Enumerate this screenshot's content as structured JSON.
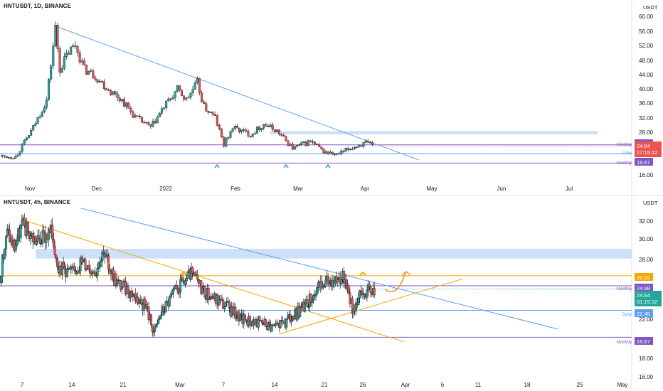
{
  "charts": [
    {
      "id": "daily",
      "title": "HNTUSDT, 1D, BINANCE",
      "currency": "USDT",
      "y_ticks": [
        "60.00",
        "56.00",
        "52.00",
        "48.00",
        "44.00",
        "40.00",
        "36.00",
        "32.00",
        "28.00",
        "16.00"
      ],
      "x_ticks": [
        "Nov",
        "Dec",
        "2022",
        "Feb",
        "Mar",
        "Apr",
        "May",
        "Jun",
        "Jul"
      ],
      "levels": [
        {
          "name": "Monthly",
          "value": "24.98",
          "color": "#7e57c2"
        },
        {
          "name": "Daily",
          "value": "22.45",
          "color": "#5b9cf6"
        },
        {
          "name": "Monthly",
          "value": "19.67",
          "color": "#7e57c2"
        }
      ],
      "price_badge": {
        "value": "24.64",
        "countdown": "17:15:12",
        "color": "#ef5350"
      },
      "support_markers": 3
    },
    {
      "id": "h4",
      "title": "HNTUSDT, 4h, BINANCE",
      "currency": "USDT",
      "y_ticks": [
        "32.00",
        "30.00",
        "28.00",
        "22.00",
        "18.00",
        "16.00"
      ],
      "x_ticks": [
        "7",
        "14",
        "21",
        "Mar",
        "7",
        "14",
        "21",
        "26",
        "Apr",
        "6",
        "11",
        "18",
        "25",
        "May"
      ],
      "levels": [
        {
          "name": "",
          "value": "26.02",
          "color": "#f7a600"
        },
        {
          "name": "Monthly",
          "value": "24.98",
          "color": "#7e57c2"
        },
        {
          "name": "Daily",
          "value": "22.45",
          "color": "#5b9cf6"
        },
        {
          "name": "Monthly",
          "value": "19.67",
          "color": "#7e57c2"
        }
      ],
      "price_badge": {
        "value": "24.64",
        "countdown": "01:15:12",
        "color": "#26a69a"
      }
    }
  ],
  "chart_data": [
    {
      "type": "candlestick",
      "title": "HNTUSDT, 1D, BINANCE",
      "x_range": [
        "2021-10-13",
        "2022-07-25"
      ],
      "ylim": [
        15,
        64
      ],
      "close_path": [
        [
          "2021-10-14",
          21.6
        ],
        [
          "2021-10-20",
          21.5
        ],
        [
          "2021-10-28",
          30
        ],
        [
          "2021-11-03",
          38
        ],
        [
          "2021-11-07",
          59
        ],
        [
          "2021-11-09",
          47
        ],
        [
          "2021-11-13",
          52
        ],
        [
          "2021-11-16",
          54
        ],
        [
          "2021-11-20",
          47
        ],
        [
          "2021-11-25",
          45
        ],
        [
          "2021-12-01",
          41
        ],
        [
          "2021-12-07",
          38
        ],
        [
          "2021-12-13",
          33
        ],
        [
          "2021-12-20",
          30
        ],
        [
          "2021-12-26",
          36
        ],
        [
          "2022-01-01",
          41
        ],
        [
          "2022-01-05",
          38
        ],
        [
          "2022-01-10",
          43
        ],
        [
          "2022-01-13",
          36
        ],
        [
          "2022-01-18",
          33
        ],
        [
          "2022-01-22",
          25
        ],
        [
          "2022-01-26",
          30
        ],
        [
          "2022-02-03",
          28
        ],
        [
          "2022-02-09",
          31
        ],
        [
          "2022-02-15",
          29
        ],
        [
          "2022-02-22",
          24
        ],
        [
          "2022-02-26",
          25
        ],
        [
          "2022-03-02",
          26
        ],
        [
          "2022-03-08",
          23
        ],
        [
          "2022-03-14",
          22
        ],
        [
          "2022-03-20",
          24
        ],
        [
          "2022-03-27",
          25.5
        ],
        [
          "2022-03-30",
          24.64
        ]
      ],
      "trendline": [
        [
          "2021-11-07",
          59.5
        ],
        [
          "2022-04-20",
          20.6
        ]
      ],
      "resistance_zone": [
        28.0,
        29.0
      ],
      "levels": [
        24.98,
        22.45,
        19.67
      ],
      "last_price": 24.64
    },
    {
      "type": "candlestick",
      "title": "HNTUSDT, 4h, BINANCE",
      "x_range": [
        "2022-02-05",
        "2022-05-02"
      ],
      "ylim": [
        15,
        33.5
      ],
      "close_path": [
        [
          "2022-02-05",
          26
        ],
        [
          "2022-02-06",
          30.5
        ],
        [
          "2022-02-07",
          29
        ],
        [
          "2022-02-08",
          31.3
        ],
        [
          "2022-02-10",
          29.5
        ],
        [
          "2022-02-12",
          30.5
        ],
        [
          "2022-02-13",
          27
        ],
        [
          "2022-02-15",
          26.3
        ],
        [
          "2022-02-16",
          27.5
        ],
        [
          "2022-02-18",
          26.6
        ],
        [
          "2022-02-19",
          28.2
        ],
        [
          "2022-02-21",
          25.3
        ],
        [
          "2022-02-23",
          24.2
        ],
        [
          "2022-02-25",
          22.6
        ],
        [
          "2022-02-26",
          20.1
        ],
        [
          "2022-02-27",
          22.3
        ],
        [
          "2022-03-01",
          24.5
        ],
        [
          "2022-03-03",
          26.2
        ],
        [
          "2022-03-05",
          24.3
        ],
        [
          "2022-03-08",
          22.8
        ],
        [
          "2022-03-10",
          21.5
        ],
        [
          "2022-03-12",
          21.3
        ],
        [
          "2022-03-14",
          20.8
        ],
        [
          "2022-03-16",
          21.2
        ],
        [
          "2022-03-18",
          22.5
        ],
        [
          "2022-03-20",
          24.5
        ],
        [
          "2022-03-22",
          25.6
        ],
        [
          "2022-03-24",
          25.9
        ],
        [
          "2022-03-25",
          22.5
        ],
        [
          "2022-03-26",
          24.0
        ],
        [
          "2022-03-27",
          24.5
        ],
        [
          "2022-03-28",
          24.64
        ]
      ],
      "trendlines": [
        {
          "color": "#5b9cf6",
          "points": [
            [
              "2022-02-16",
              33.0
            ],
            [
              "2022-04-22",
              20.5
            ]
          ]
        },
        {
          "color": "#f7a600",
          "points": [
            [
              "2022-02-08",
              31.8
            ],
            [
              "2022-04-01",
              19.2
            ]
          ]
        },
        {
          "color": "#f7a600",
          "points": [
            [
              "2022-03-15",
              20.0
            ],
            [
              "2022-04-09",
              25.7
            ]
          ]
        }
      ],
      "resistance_zone": [
        27.8,
        28.8
      ],
      "levels": [
        26.02,
        24.98,
        22.45,
        19.67
      ],
      "last_price": 24.64
    }
  ]
}
